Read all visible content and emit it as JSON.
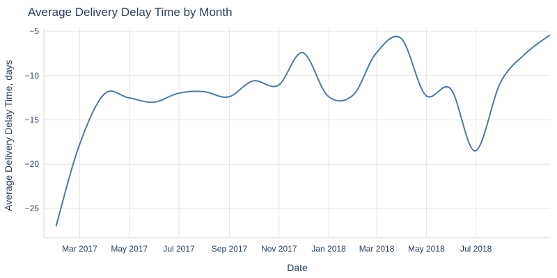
{
  "chart_data": {
    "type": "line",
    "title": "Average Delivery Delay Time by Month",
    "xlabel": "Date",
    "ylabel": "Average Delivery Delay Time, days",
    "x_tick_labels": [
      "Mar 2017",
      "May 2017",
      "Jul 2017",
      "Sep 2017",
      "Nov 2017",
      "Jan 2018",
      "Mar 2018",
      "May 2018",
      "Jul 2018"
    ],
    "y_ticks": [
      -5,
      -10,
      -15,
      -20,
      -25
    ],
    "ylim": [
      -28.3,
      -4.6
    ],
    "xlim": [
      "2017-01-16",
      "2018-09-30"
    ],
    "grid": true,
    "line_color": "#4c78a8",
    "series": [
      {
        "x": [
          "2017-01-31",
          "2017-02-28",
          "2017-03-31",
          "2017-04-30",
          "2017-05-31",
          "2017-06-30",
          "2017-07-31",
          "2017-08-31",
          "2017-09-30",
          "2017-10-31",
          "2017-11-30",
          "2017-12-31",
          "2018-01-31",
          "2018-02-28",
          "2018-03-31",
          "2018-04-30",
          "2018-05-31",
          "2018-06-30",
          "2018-07-31",
          "2018-08-31",
          "2018-09-30"
        ],
        "values": [
          -27.0,
          -18.0,
          -12.1,
          -12.5,
          -13.0,
          -12.0,
          -11.8,
          -12.4,
          -10.6,
          -11.1,
          -7.4,
          -12.3,
          -12.2,
          -7.5,
          -5.8,
          -12.2,
          -11.5,
          -18.5,
          -10.8,
          -7.5,
          -5.4
        ]
      }
    ]
  }
}
